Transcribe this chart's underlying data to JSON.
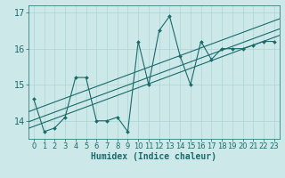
{
  "title": "",
  "xlabel": "Humidex (Indice chaleur)",
  "xlim": [
    -0.5,
    23.5
  ],
  "ylim": [
    13.5,
    17.2
  ],
  "yticks": [
    14,
    15,
    16,
    17
  ],
  "xticks": [
    0,
    1,
    2,
    3,
    4,
    5,
    6,
    7,
    8,
    9,
    10,
    11,
    12,
    13,
    14,
    15,
    16,
    17,
    18,
    19,
    20,
    21,
    22,
    23
  ],
  "bg_color": "#cce8e8",
  "line_color": "#1a6b6b",
  "grid_color": "#aad4d4",
  "data_x": [
    0,
    1,
    2,
    3,
    4,
    5,
    6,
    7,
    8,
    9,
    10,
    11,
    12,
    13,
    14,
    15,
    16,
    17,
    18,
    19,
    20,
    21,
    22,
    23
  ],
  "data_y": [
    14.6,
    13.7,
    13.8,
    14.1,
    15.2,
    15.2,
    14.0,
    14.0,
    14.1,
    13.7,
    16.2,
    15.0,
    16.5,
    16.9,
    15.8,
    15.0,
    16.2,
    15.7,
    16.0,
    16.0,
    16.0,
    16.1,
    16.2,
    16.2
  ],
  "reg_color": "#1a6b6b",
  "font_color": "#1a6b6b",
  "reg_offsets": [
    0.0,
    0.28,
    -0.18
  ],
  "xlabel_fontsize": 7,
  "tick_fontsize": 6,
  "ytick_fontsize": 7
}
